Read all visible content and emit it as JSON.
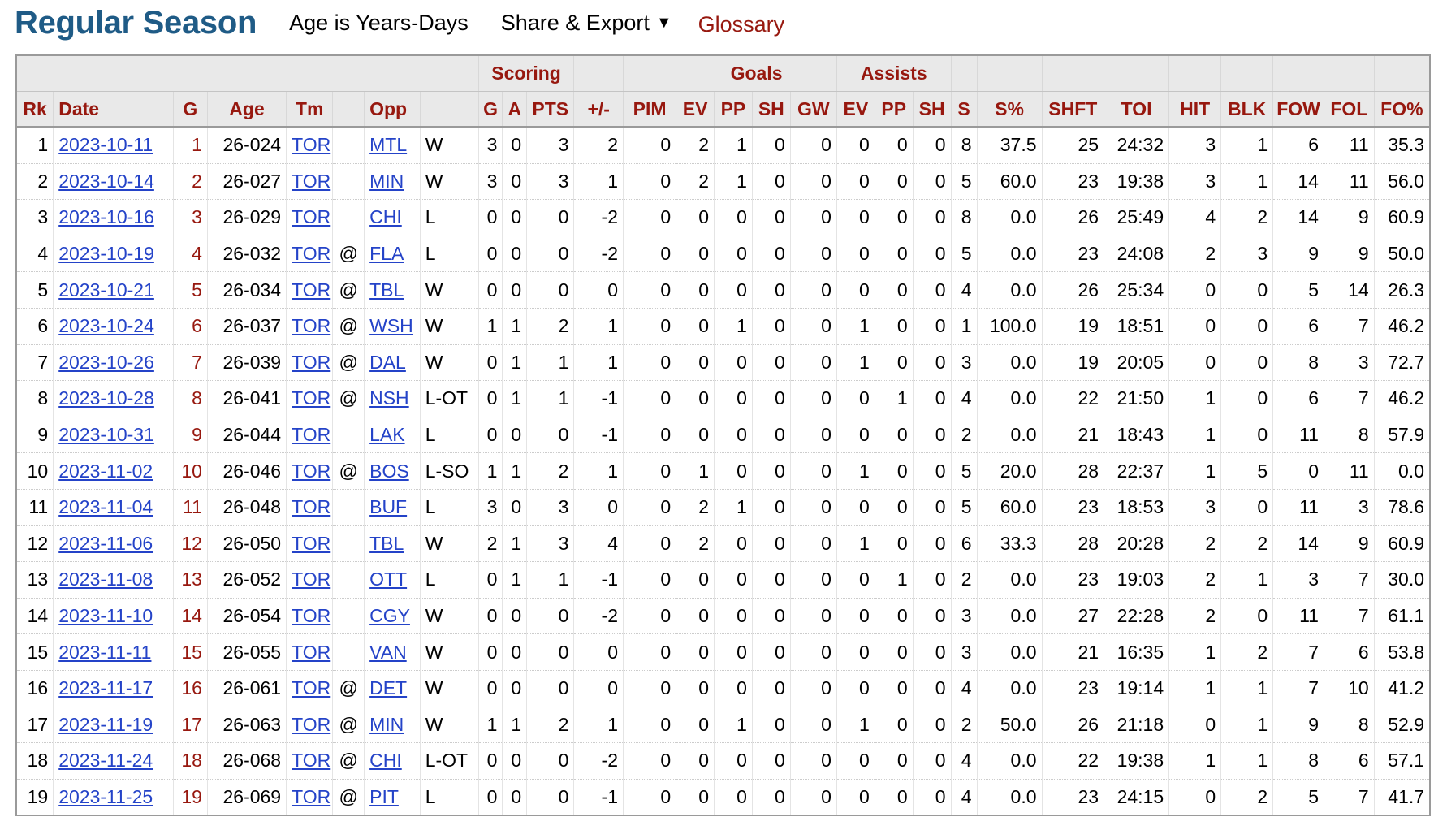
{
  "header": {
    "title": "Regular Season",
    "age_note": "Age is Years-Days",
    "share_label": "Share & Export",
    "share_caret": "▼",
    "glossary_label": "Glossary"
  },
  "colors": {
    "title": "#1f5b86",
    "header_text": "#97180f",
    "link": "#2443c8",
    "header_bg": "#e9e9e9"
  },
  "icons": {
    "share_dropdown": "caret-down-icon"
  },
  "table": {
    "groups": [
      "",
      "Scoring",
      "",
      "",
      "Goals",
      "Assists",
      "",
      "",
      "",
      "",
      "",
      "",
      "",
      "",
      ""
    ],
    "columns": [
      "Rk",
      "Date",
      "G",
      "Age",
      "Tm",
      "",
      "Opp",
      "",
      "G",
      "A",
      "PTS",
      "+/-",
      "PIM",
      "EV",
      "PP",
      "SH",
      "GW",
      "EV",
      "PP",
      "SH",
      "S",
      "S%",
      "SHFT",
      "TOI",
      "HIT",
      "BLK",
      "FOW",
      "FOL",
      "FO%"
    ],
    "rows": [
      [
        "1",
        "2023-10-11",
        "1",
        "26-024",
        "TOR",
        "",
        "MTL",
        "W",
        "3",
        "0",
        "3",
        "2",
        "0",
        "2",
        "1",
        "0",
        "0",
        "0",
        "0",
        "0",
        "8",
        "37.5",
        "25",
        "24:32",
        "3",
        "1",
        "6",
        "11",
        "35.3"
      ],
      [
        "2",
        "2023-10-14",
        "2",
        "26-027",
        "TOR",
        "",
        "MIN",
        "W",
        "3",
        "0",
        "3",
        "1",
        "0",
        "2",
        "1",
        "0",
        "0",
        "0",
        "0",
        "0",
        "5",
        "60.0",
        "23",
        "19:38",
        "3",
        "1",
        "14",
        "11",
        "56.0"
      ],
      [
        "3",
        "2023-10-16",
        "3",
        "26-029",
        "TOR",
        "",
        "CHI",
        "L",
        "0",
        "0",
        "0",
        "-2",
        "0",
        "0",
        "0",
        "0",
        "0",
        "0",
        "0",
        "0",
        "8",
        "0.0",
        "26",
        "25:49",
        "4",
        "2",
        "14",
        "9",
        "60.9"
      ],
      [
        "4",
        "2023-10-19",
        "4",
        "26-032",
        "TOR",
        "@",
        "FLA",
        "L",
        "0",
        "0",
        "0",
        "-2",
        "0",
        "0",
        "0",
        "0",
        "0",
        "0",
        "0",
        "0",
        "5",
        "0.0",
        "23",
        "24:08",
        "2",
        "3",
        "9",
        "9",
        "50.0"
      ],
      [
        "5",
        "2023-10-21",
        "5",
        "26-034",
        "TOR",
        "@",
        "TBL",
        "W",
        "0",
        "0",
        "0",
        "0",
        "0",
        "0",
        "0",
        "0",
        "0",
        "0",
        "0",
        "0",
        "4",
        "0.0",
        "26",
        "25:34",
        "0",
        "0",
        "5",
        "14",
        "26.3"
      ],
      [
        "6",
        "2023-10-24",
        "6",
        "26-037",
        "TOR",
        "@",
        "WSH",
        "W",
        "1",
        "1",
        "2",
        "1",
        "0",
        "0",
        "1",
        "0",
        "0",
        "1",
        "0",
        "0",
        "1",
        "100.0",
        "19",
        "18:51",
        "0",
        "0",
        "6",
        "7",
        "46.2"
      ],
      [
        "7",
        "2023-10-26",
        "7",
        "26-039",
        "TOR",
        "@",
        "DAL",
        "W",
        "0",
        "1",
        "1",
        "1",
        "0",
        "0",
        "0",
        "0",
        "0",
        "1",
        "0",
        "0",
        "3",
        "0.0",
        "19",
        "20:05",
        "0",
        "0",
        "8",
        "3",
        "72.7"
      ],
      [
        "8",
        "2023-10-28",
        "8",
        "26-041",
        "TOR",
        "@",
        "NSH",
        "L-OT",
        "0",
        "1",
        "1",
        "-1",
        "0",
        "0",
        "0",
        "0",
        "0",
        "0",
        "1",
        "0",
        "4",
        "0.0",
        "22",
        "21:50",
        "1",
        "0",
        "6",
        "7",
        "46.2"
      ],
      [
        "9",
        "2023-10-31",
        "9",
        "26-044",
        "TOR",
        "",
        "LAK",
        "L",
        "0",
        "0",
        "0",
        "-1",
        "0",
        "0",
        "0",
        "0",
        "0",
        "0",
        "0",
        "0",
        "2",
        "0.0",
        "21",
        "18:43",
        "1",
        "0",
        "11",
        "8",
        "57.9"
      ],
      [
        "10",
        "2023-11-02",
        "10",
        "26-046",
        "TOR",
        "@",
        "BOS",
        "L-SO",
        "1",
        "1",
        "2",
        "1",
        "0",
        "1",
        "0",
        "0",
        "0",
        "1",
        "0",
        "0",
        "5",
        "20.0",
        "28",
        "22:37",
        "1",
        "5",
        "0",
        "11",
        "0.0"
      ],
      [
        "11",
        "2023-11-04",
        "11",
        "26-048",
        "TOR",
        "",
        "BUF",
        "L",
        "3",
        "0",
        "3",
        "0",
        "0",
        "2",
        "1",
        "0",
        "0",
        "0",
        "0",
        "0",
        "5",
        "60.0",
        "23",
        "18:53",
        "3",
        "0",
        "11",
        "3",
        "78.6"
      ],
      [
        "12",
        "2023-11-06",
        "12",
        "26-050",
        "TOR",
        "",
        "TBL",
        "W",
        "2",
        "1",
        "3",
        "4",
        "0",
        "2",
        "0",
        "0",
        "0",
        "1",
        "0",
        "0",
        "6",
        "33.3",
        "28",
        "20:28",
        "2",
        "2",
        "14",
        "9",
        "60.9"
      ],
      [
        "13",
        "2023-11-08",
        "13",
        "26-052",
        "TOR",
        "",
        "OTT",
        "L",
        "0",
        "1",
        "1",
        "-1",
        "0",
        "0",
        "0",
        "0",
        "0",
        "0",
        "1",
        "0",
        "2",
        "0.0",
        "23",
        "19:03",
        "2",
        "1",
        "3",
        "7",
        "30.0"
      ],
      [
        "14",
        "2023-11-10",
        "14",
        "26-054",
        "TOR",
        "",
        "CGY",
        "W",
        "0",
        "0",
        "0",
        "-2",
        "0",
        "0",
        "0",
        "0",
        "0",
        "0",
        "0",
        "0",
        "3",
        "0.0",
        "27",
        "22:28",
        "2",
        "0",
        "11",
        "7",
        "61.1"
      ],
      [
        "15",
        "2023-11-11",
        "15",
        "26-055",
        "TOR",
        "",
        "VAN",
        "W",
        "0",
        "0",
        "0",
        "0",
        "0",
        "0",
        "0",
        "0",
        "0",
        "0",
        "0",
        "0",
        "3",
        "0.0",
        "21",
        "16:35",
        "1",
        "2",
        "7",
        "6",
        "53.8"
      ],
      [
        "16",
        "2023-11-17",
        "16",
        "26-061",
        "TOR",
        "@",
        "DET",
        "W",
        "0",
        "0",
        "0",
        "0",
        "0",
        "0",
        "0",
        "0",
        "0",
        "0",
        "0",
        "0",
        "4",
        "0.0",
        "23",
        "19:14",
        "1",
        "1",
        "7",
        "10",
        "41.2"
      ],
      [
        "17",
        "2023-11-19",
        "17",
        "26-063",
        "TOR",
        "@",
        "MIN",
        "W",
        "1",
        "1",
        "2",
        "1",
        "0",
        "0",
        "1",
        "0",
        "0",
        "1",
        "0",
        "0",
        "2",
        "50.0",
        "26",
        "21:18",
        "0",
        "1",
        "9",
        "8",
        "52.9"
      ],
      [
        "18",
        "2023-11-24",
        "18",
        "26-068",
        "TOR",
        "@",
        "CHI",
        "L-OT",
        "0",
        "0",
        "0",
        "-2",
        "0",
        "0",
        "0",
        "0",
        "0",
        "0",
        "0",
        "0",
        "4",
        "0.0",
        "22",
        "19:38",
        "1",
        "1",
        "8",
        "6",
        "57.1"
      ],
      [
        "19",
        "2023-11-25",
        "19",
        "26-069",
        "TOR",
        "@",
        "PIT",
        "L",
        "0",
        "0",
        "0",
        "-1",
        "0",
        "0",
        "0",
        "0",
        "0",
        "0",
        "0",
        "0",
        "4",
        "0.0",
        "23",
        "24:15",
        "0",
        "2",
        "5",
        "7",
        "41.7"
      ]
    ]
  }
}
